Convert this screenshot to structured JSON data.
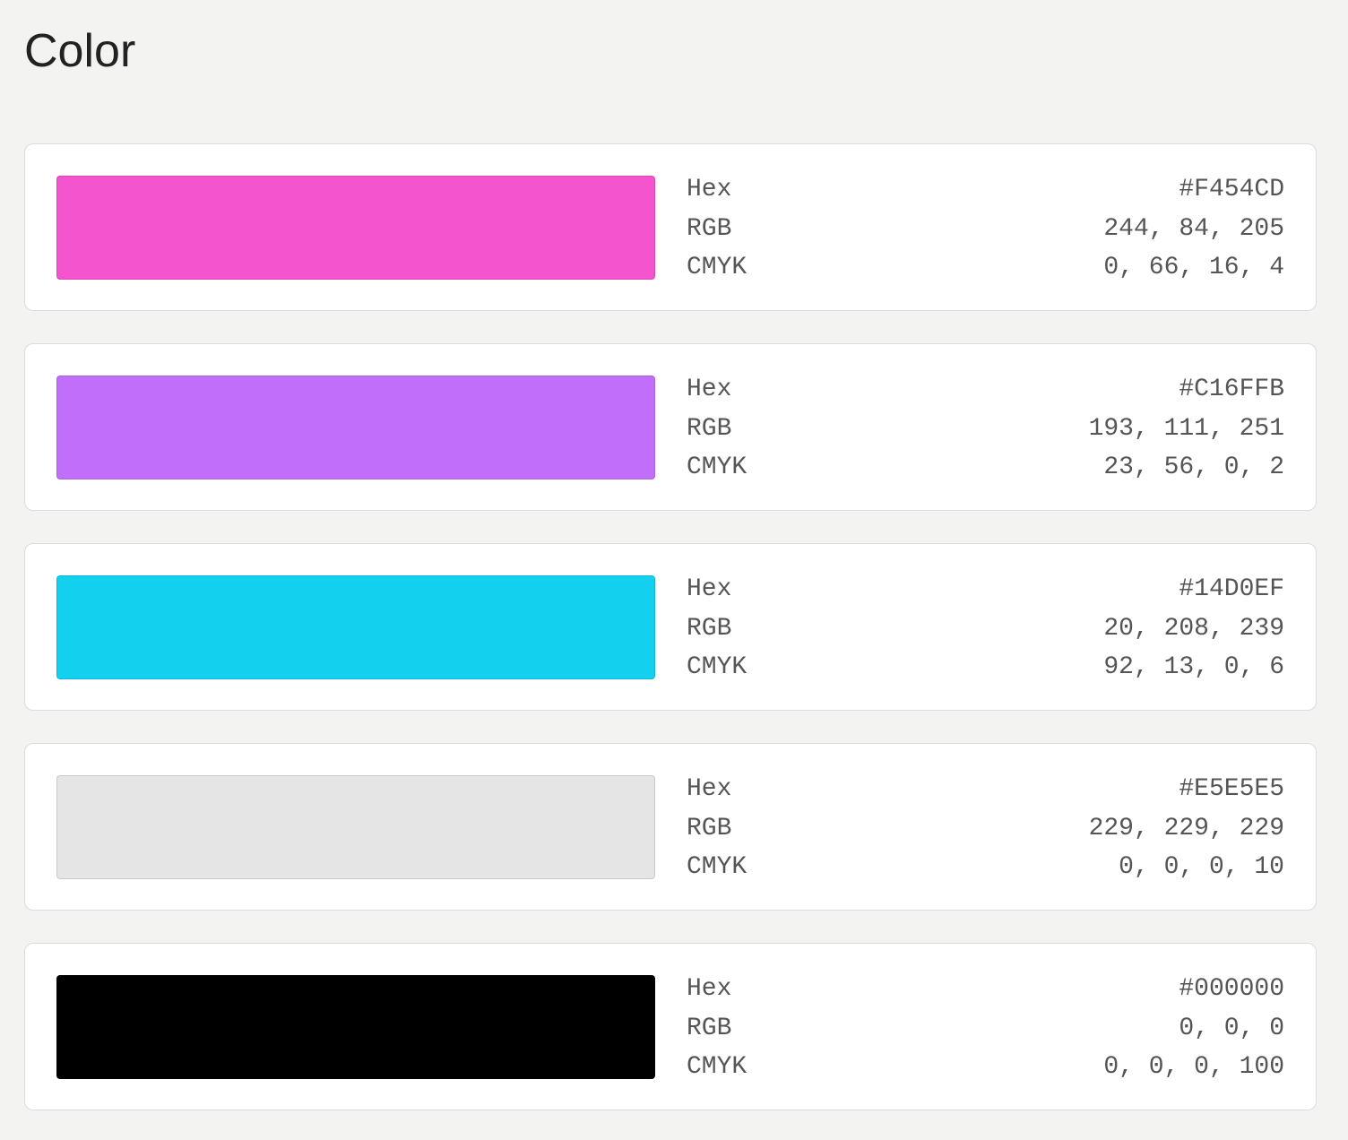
{
  "title": "Color",
  "swatches": [
    {
      "rows": [
        [
          "Hex",
          "#F454CD"
        ],
        [
          "RGB",
          "244, 84, 205"
        ],
        [
          "CMYK",
          "0, 66, 16, 4"
        ]
      ]
    },
    {
      "rows": [
        [
          "Hex",
          "#C16FFB"
        ],
        [
          "RGB",
          "193, 111, 251"
        ],
        [
          "CMYK",
          "23, 56, 0, 2"
        ]
      ]
    },
    {
      "rows": [
        [
          "Hex",
          "#14D0EF"
        ],
        [
          "RGB",
          "20, 208, 239"
        ],
        [
          "CMYK",
          "92, 13, 0, 6"
        ]
      ]
    },
    {
      "rows": [
        [
          "Hex",
          "#E5E5E5"
        ],
        [
          "RGB",
          "229, 229, 229"
        ],
        [
          "CMYK",
          "0, 0, 0, 10"
        ]
      ]
    },
    {
      "rows": [
        [
          "Hex",
          "#000000"
        ],
        [
          "RGB",
          "0, 0, 0"
        ],
        [
          "CMYK",
          "0, 0, 0, 100"
        ]
      ]
    }
  ]
}
